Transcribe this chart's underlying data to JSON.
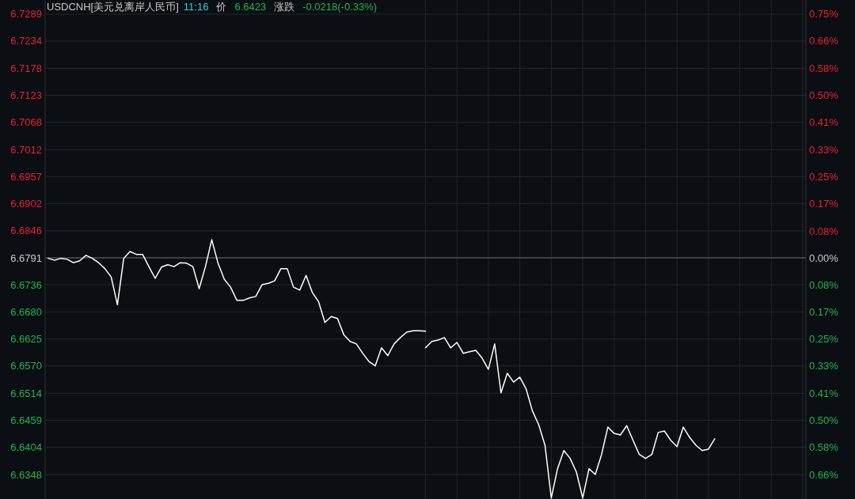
{
  "chart_data": {
    "type": "line",
    "title": "USDCNH[美元兑离岸人民币]",
    "annotations": [
      "11:16",
      "价",
      "6.6423",
      "涨跌",
      "-0.0218(-0.33%)"
    ],
    "categories": [
      null,
      null,
      null,
      null,
      null,
      null,
      null,
      null,
      null,
      null,
      null,
      null,
      null,
      null,
      null,
      null,
      null,
      null,
      null,
      null,
      null,
      null,
      null,
      null,
      null,
      null,
      null,
      null,
      null,
      null,
      null,
      null,
      null,
      null,
      null,
      null,
      null,
      null,
      null,
      null,
      null,
      null,
      null,
      null,
      null,
      null,
      null,
      null,
      null,
      null,
      null,
      null,
      null,
      null,
      null,
      null,
      null,
      null,
      null,
      null,
      null,
      null,
      null,
      null,
      null,
      null,
      null,
      null,
      null,
      null,
      null,
      null,
      null,
      null,
      null,
      null,
      null,
      null,
      null,
      null,
      null,
      null,
      null,
      null,
      null,
      null,
      null,
      null,
      null,
      null,
      null,
      null,
      null,
      null,
      null,
      null,
      null,
      null,
      null,
      null,
      null,
      null,
      null,
      null,
      null,
      null,
      null,
      null,
      null,
      null,
      null,
      null,
      null,
      null,
      null,
      null,
      null,
      null,
      null,
      null,
      null
    ],
    "series": [
      {
        "color": "#ffffff",
        "values": [
          6.679,
          6.6786,
          6.679,
          6.6788,
          6.6781,
          6.6785,
          6.6796,
          6.679,
          6.6781,
          6.6769,
          6.6752,
          6.6695,
          6.679,
          6.6804,
          6.6798,
          6.6798,
          6.6773,
          6.6749,
          6.6772,
          6.6777,
          6.6773,
          6.6781,
          6.678,
          6.6773,
          6.6728,
          6.6773,
          6.6828,
          6.678,
          6.6747,
          6.6731,
          6.6704,
          6.6704,
          6.6709,
          6.6712,
          6.6736,
          6.6739,
          6.6744,
          6.6769,
          6.6769,
          6.6731,
          6.6725,
          6.6755,
          6.672,
          6.6701,
          6.6659,
          6.6671,
          6.6667,
          6.6634,
          6.662,
          6.6615,
          6.6596,
          6.6579,
          6.657,
          6.6607,
          6.6591,
          6.6615,
          6.6628,
          6.6639,
          6.6642,
          6.6642,
          6.6641,
          null,
          null,
          null,
          null,
          null,
          null,
          null,
          null,
          null,
          null,
          null,
          null,
          null,
          null,
          null,
          null,
          null,
          null,
          null,
          null,
          null,
          null,
          null,
          null,
          null,
          null,
          null,
          null,
          null,
          null,
          null,
          null,
          null,
          null,
          null,
          null,
          null,
          null,
          null,
          null,
          null,
          null,
          null,
          null,
          null,
          null,
          null,
          null,
          null,
          null,
          null,
          null,
          null,
          null,
          null,
          null,
          null,
          null,
          null,
          null
        ]
      },
      {
        "color": "#ffffff",
        "values": [
          null,
          null,
          null,
          null,
          null,
          null,
          null,
          null,
          null,
          null,
          null,
          null,
          null,
          null,
          null,
          null,
          null,
          null,
          null,
          null,
          null,
          null,
          null,
          null,
          null,
          null,
          null,
          null,
          null,
          null,
          null,
          null,
          null,
          null,
          null,
          null,
          null,
          null,
          null,
          null,
          null,
          null,
          null,
          null,
          null,
          null,
          null,
          null,
          null,
          null,
          null,
          null,
          null,
          null,
          null,
          null,
          null,
          null,
          null,
          null,
          6.6607,
          6.662,
          6.6623,
          6.6628,
          6.6607,
          6.6618,
          6.6596,
          6.6599,
          6.6602,
          6.6586,
          6.6563,
          6.6615,
          6.6515,
          6.6555,
          6.6537,
          6.6547,
          6.6523,
          6.6478,
          6.645,
          6.6408,
          6.63,
          6.636,
          6.6397,
          6.6381,
          6.6353,
          6.63,
          6.636,
          6.6348,
          6.6389,
          6.6445,
          6.6432,
          6.6429,
          6.6448,
          6.6418,
          6.6389,
          6.6381,
          6.6389,
          6.6434,
          6.6437,
          6.6418,
          6.6405,
          6.6445,
          6.6424,
          6.6408,
          6.6397,
          6.64,
          6.6421,
          null,
          null,
          null,
          null,
          null,
          null,
          null,
          null,
          null,
          null,
          null,
          null,
          null,
          null
        ]
      }
    ],
    "ylim": [
      6.6298,
      6.7318
    ],
    "yticks": [
      6.7289,
      6.7234,
      6.7178,
      6.7123,
      6.7068,
      6.7012,
      6.6957,
      6.6902,
      6.6846,
      6.6791,
      6.6736,
      {
        "value": 6.668,
        "label": "6.6680"
      },
      6.6625,
      {
        "value": 6.657,
        "label": "6.6570"
      },
      6.6514,
      6.6459,
      6.6404,
      6.6348
    ],
    "y2lim": [
      -0.7381,
      0.789
    ],
    "y2ticks": [
      {
        "value": 0.7456,
        "label": "0.75%"
      },
      {
        "value": 0.6633,
        "label": "0.66%"
      },
      {
        "value": 0.5794,
        "label": "0.58%"
      },
      {
        "value": 0.4971,
        "label": "0.50%"
      },
      {
        "value": 0.4147,
        "label": "0.41%"
      },
      {
        "value": 0.3309,
        "label": "0.33%"
      },
      {
        "value": 0.2485,
        "label": "0.25%"
      },
      {
        "value": 0.1662,
        "label": "0.17%"
      },
      {
        "value": 0.0823,
        "label": "0.08%"
      },
      {
        "value": 0,
        "label": "0.00%"
      },
      {
        "value": -0.0823,
        "label": "0.08%"
      },
      {
        "value": -0.1662,
        "label": "0.17%"
      },
      {
        "value": -0.2485,
        "label": "0.25%"
      },
      {
        "value": -0.3309,
        "label": "0.33%"
      },
      {
        "value": -0.4147,
        "label": "0.41%"
      },
      {
        "value": -0.4971,
        "label": "0.50%"
      },
      {
        "value": -0.5794,
        "label": "0.58%"
      },
      {
        "value": -0.6633,
        "label": "0.66%"
      }
    ],
    "ref_lines": [
      {
        "axis": "y",
        "value": 6.6791,
        "color": "#4a4d52"
      }
    ],
    "grid": true,
    "marker": "none",
    "line_style": "solid"
  }
}
